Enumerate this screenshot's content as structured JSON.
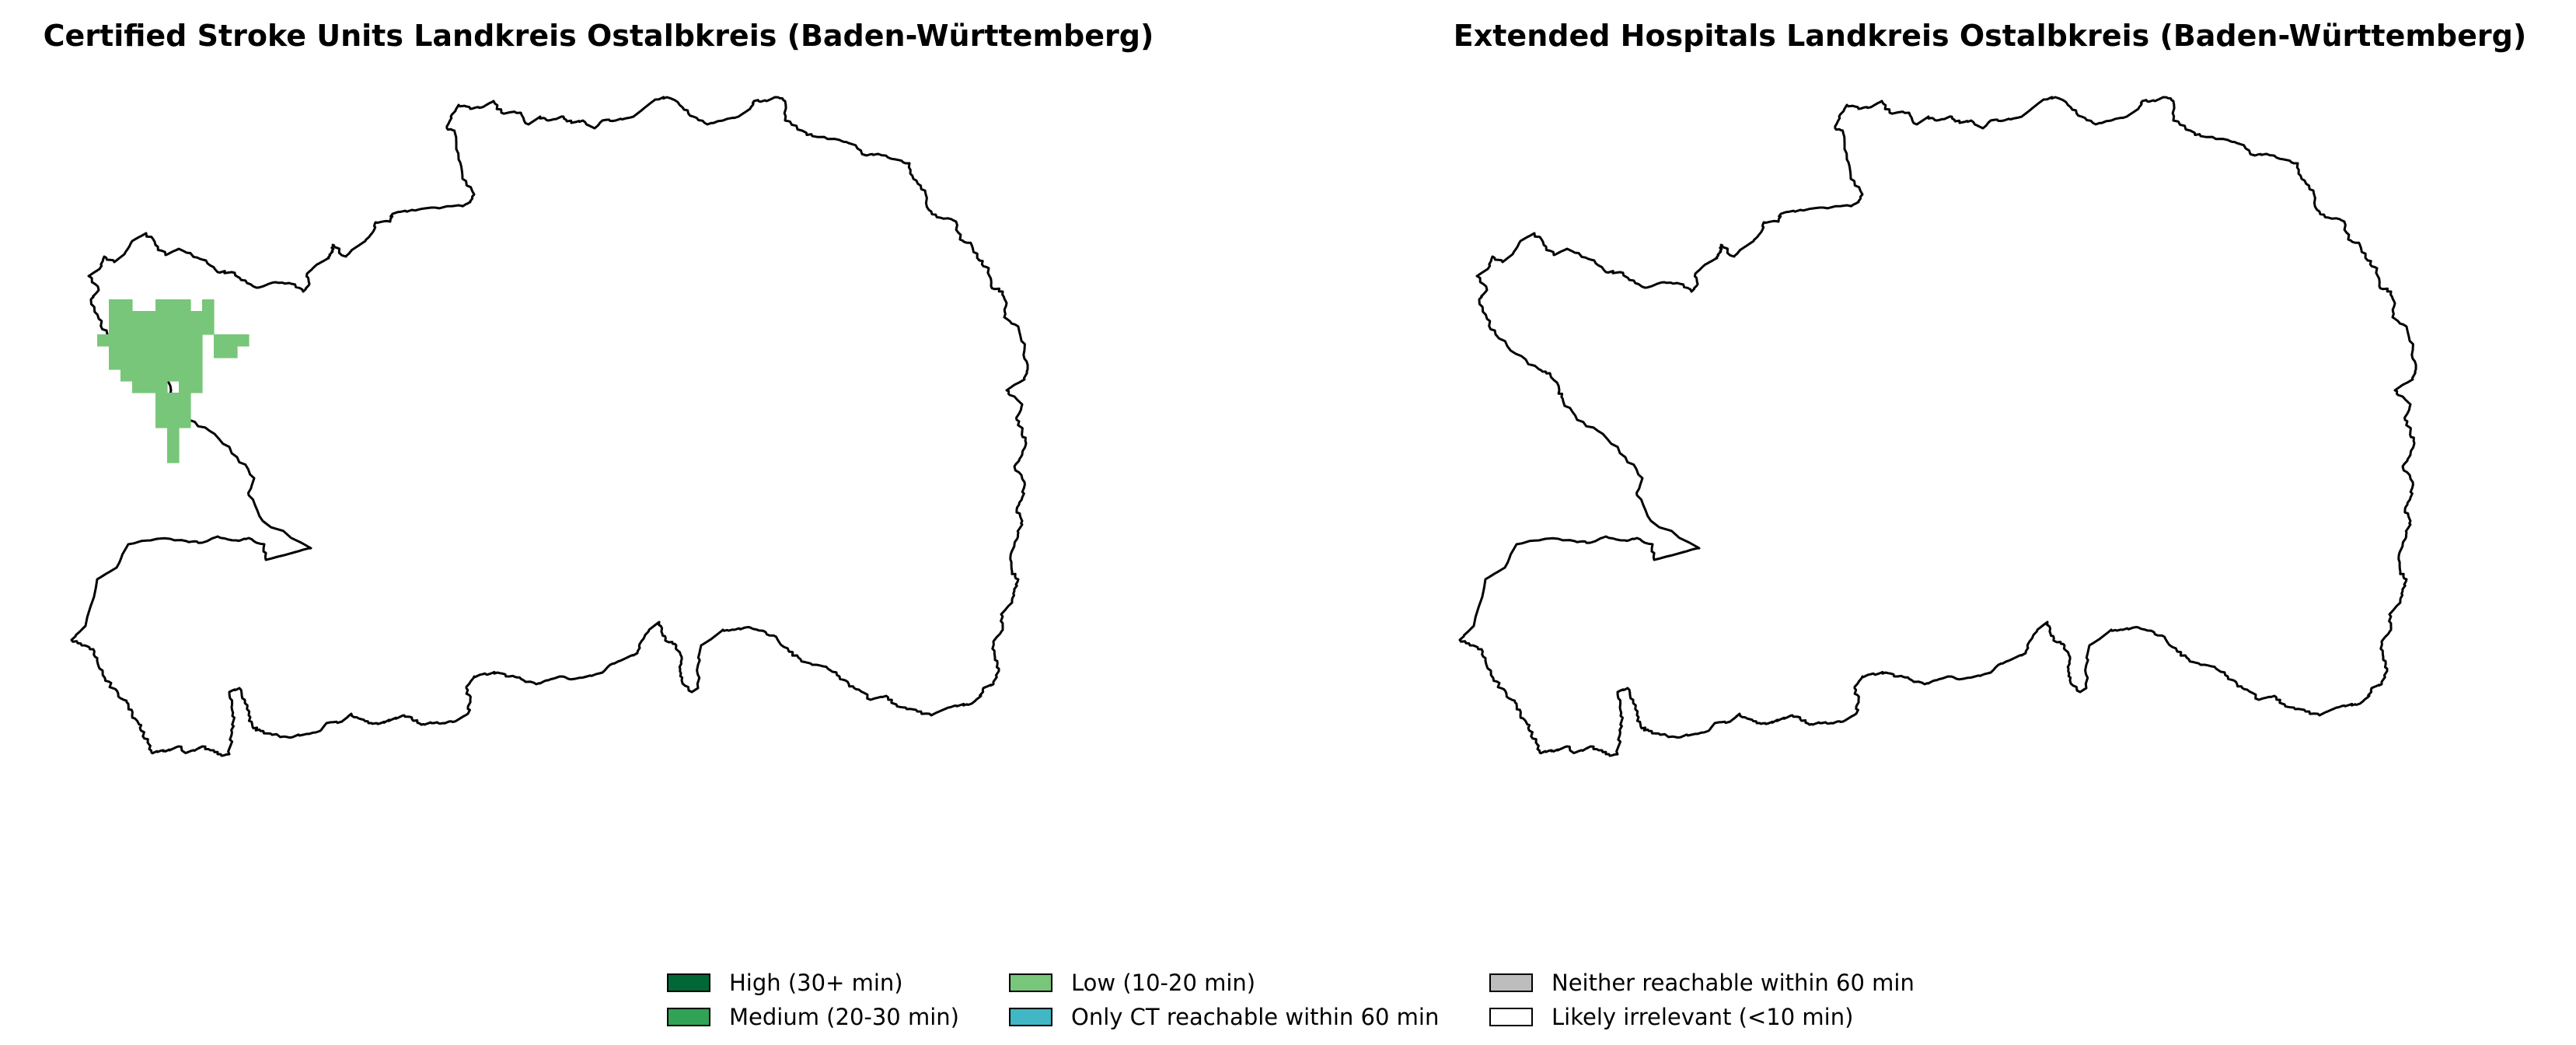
{
  "maps": {
    "left": {
      "title": "Certified Stroke Units Landkreis Ostalbkreis (Baden-Württemberg)",
      "shaded_category": "low",
      "shaded_region": "north-west"
    },
    "right": {
      "title": "Extended Hospitals Landkreis Ostalbkreis (Baden-Württemberg)",
      "shaded_category": "none",
      "shaded_region": "none"
    }
  },
  "legend": {
    "items": [
      {
        "key": "high",
        "label": "High (30+ min)",
        "color": "#006837"
      },
      {
        "key": "medium",
        "label": "Medium (20-30 min)",
        "color": "#31a354"
      },
      {
        "key": "low",
        "label": "Low (10-20 min)",
        "color": "#78c679"
      },
      {
        "key": "ct_only",
        "label": "Only CT reachable within 60 min",
        "color": "#41b6c4"
      },
      {
        "key": "neither",
        "label": "Neither reachable within 60 min",
        "color": "#bdbdbd"
      },
      {
        "key": "irrelevant",
        "label": "Likely irrelevant (<10 min)",
        "color": "#ffffff"
      }
    ]
  },
  "colors": {
    "outline": "#000000",
    "background": "#ffffff"
  }
}
